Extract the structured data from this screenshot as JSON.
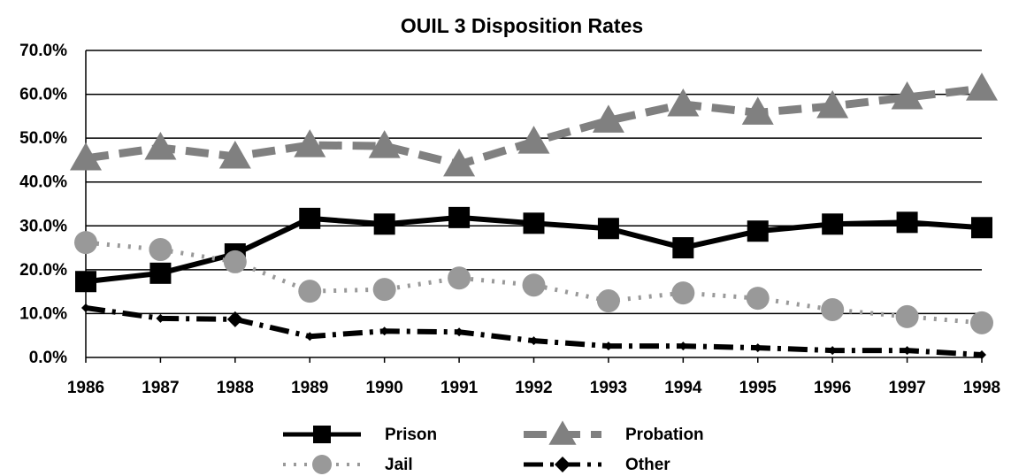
{
  "chart_data": {
    "type": "line",
    "title": "OUIL 3 Disposition Rates",
    "categories": [
      "1986",
      "1987",
      "1988",
      "1989",
      "1990",
      "1991",
      "1992",
      "1993",
      "1994",
      "1995",
      "1996",
      "1997",
      "1998"
    ],
    "series": [
      {
        "name": "Prison",
        "color": "#000000",
        "marker": "square",
        "line_style": "solid",
        "values": [
          17.3,
          19.2,
          23.6,
          31.7,
          30.4,
          31.9,
          30.6,
          29.4,
          25.0,
          28.8,
          30.4,
          30.8,
          29.6
        ]
      },
      {
        "name": "Probation",
        "color": "#808080",
        "marker": "triangle",
        "line_style": "dashed",
        "values": [
          45.4,
          47.8,
          45.8,
          48.4,
          48.2,
          44.0,
          49.2,
          54.0,
          57.7,
          55.8,
          57.3,
          59.3,
          61.3
        ]
      },
      {
        "name": "Jail",
        "color": "#999999",
        "marker": "circle",
        "line_style": "dotted",
        "values": [
          26.2,
          24.6,
          21.8,
          15.1,
          15.5,
          18.1,
          16.5,
          12.9,
          14.7,
          13.5,
          10.9,
          9.3,
          7.9
        ]
      },
      {
        "name": "Other",
        "color": "#000000",
        "marker": "diamond",
        "line_style": "dashdot",
        "values": [
          11.3,
          8.9,
          8.7,
          4.8,
          6.0,
          5.8,
          3.8,
          2.6,
          2.6,
          2.2,
          1.6,
          1.6,
          0.6
        ]
      }
    ],
    "ylim": [
      0,
      70
    ],
    "yticks": [
      {
        "value": 0,
        "label": "0.0%"
      },
      {
        "value": 10,
        "label": "10.0%"
      },
      {
        "value": 20,
        "label": "20.0%"
      },
      {
        "value": 30,
        "label": "30.0%"
      },
      {
        "value": 40,
        "label": "40.0%"
      },
      {
        "value": 50,
        "label": "50.0%"
      },
      {
        "value": 60,
        "label": "60.0%"
      },
      {
        "value": 70,
        "label": "70.0%"
      }
    ],
    "grid": true,
    "legend": "bottom"
  }
}
